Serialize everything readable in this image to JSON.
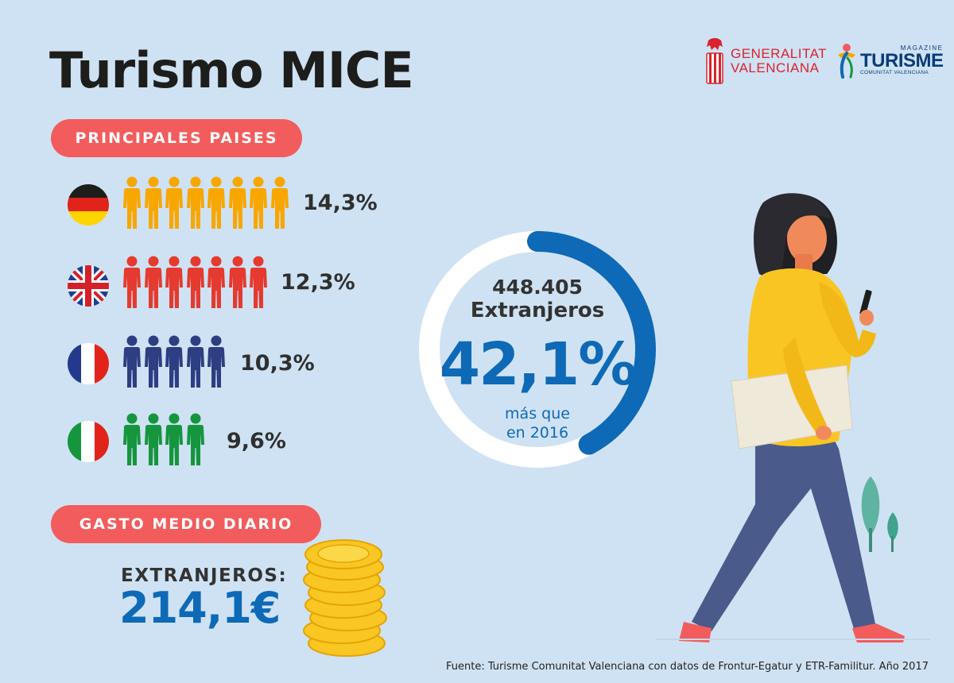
{
  "title": "Turismo MICE",
  "logos": {
    "generalitat": {
      "line1": "GENERALITAT",
      "line2": "VALENCIANA",
      "color": "#d9232d"
    },
    "turisme": {
      "line1": "MAGAZINE",
      "line2": "TURISME",
      "line3": "COMUNITAT VALENCIANA",
      "color": "#0a3c78"
    }
  },
  "sections": {
    "countries_title": "PRINCIPALES PAISES",
    "spending_title": "GASTO MEDIO DIARIO"
  },
  "countries": [
    {
      "flag": "germany-flag",
      "icon_count": 8,
      "color": "#f7a700",
      "value": "14,3%"
    },
    {
      "flag": "uk-flag",
      "icon_count": 7,
      "color": "#e53a2f",
      "value": "12,3%"
    },
    {
      "flag": "france-flag",
      "icon_count": 5,
      "color": "#2d3e82",
      "value": "10,3%"
    },
    {
      "flag": "italy-flag",
      "icon_count": 4,
      "color": "#15953e",
      "value": "9,6%"
    }
  ],
  "ring": {
    "count": "448.405",
    "label": "Extranjeros",
    "percent": "42,1%",
    "note_line1": "más que",
    "note_line2": "en 2016",
    "fill_fraction": 0.421,
    "color": "#0e69b6"
  },
  "spending": {
    "label": "EXTRANJEROS:",
    "value": "214,1€"
  },
  "colors": {
    "background": "#cfe2f3",
    "accent": "#f25c5c",
    "blue": "#0e69b6"
  },
  "source": "Fuente: Turisme Comunitat Valenciana con datos de Frontur-Egatur y ETR-Familitur. Año 2017"
}
